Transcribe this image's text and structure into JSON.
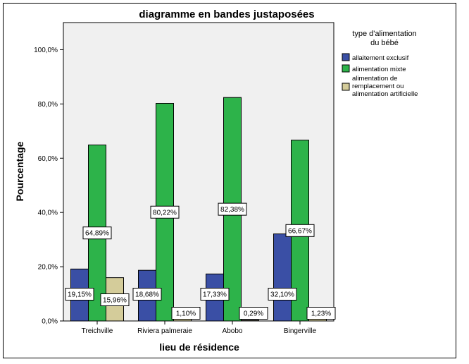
{
  "chart_data": {
    "type": "bar",
    "title": "diagramme en bandes justaposées",
    "xlabel": "lieu de résidence",
    "ylabel": "Pourcentage",
    "categories": [
      "Treichville",
      "Riviera palmeraie",
      "Abobo",
      "Bingerville"
    ],
    "ylim": [
      0,
      100
    ],
    "yticks": [
      "0,0%",
      "20,0%",
      "40,0%",
      "60,0%",
      "80,0%",
      "100,0%"
    ],
    "grid": false,
    "legend": {
      "title": [
        "type d'alimentation",
        "du bébé"
      ],
      "placement": "right"
    },
    "series": [
      {
        "name": "allaitement exclusif",
        "color": "#3a4fa5",
        "values": [
          19.15,
          18.68,
          17.33,
          32.1
        ],
        "labels": [
          "19,15%",
          "18,68%",
          "17,33%",
          "32,10%"
        ]
      },
      {
        "name": "alimentation mixte",
        "color": "#2db34a",
        "values": [
          64.89,
          80.22,
          82.38,
          66.67
        ],
        "labels": [
          "64,89%",
          "80,22%",
          "82,38%",
          "66,67%"
        ]
      },
      {
        "name": "alimentation de remplacement ou alimentation artificielle",
        "legend_lines": [
          "alimentation de",
          "remplacement ou",
          "alimentation artificielle"
        ],
        "color": "#d4cc9a",
        "values": [
          15.96,
          1.1,
          0.29,
          1.23
        ],
        "labels": [
          "15,96%",
          "1,10%",
          "0,29%",
          "1,23%"
        ]
      }
    ]
  }
}
